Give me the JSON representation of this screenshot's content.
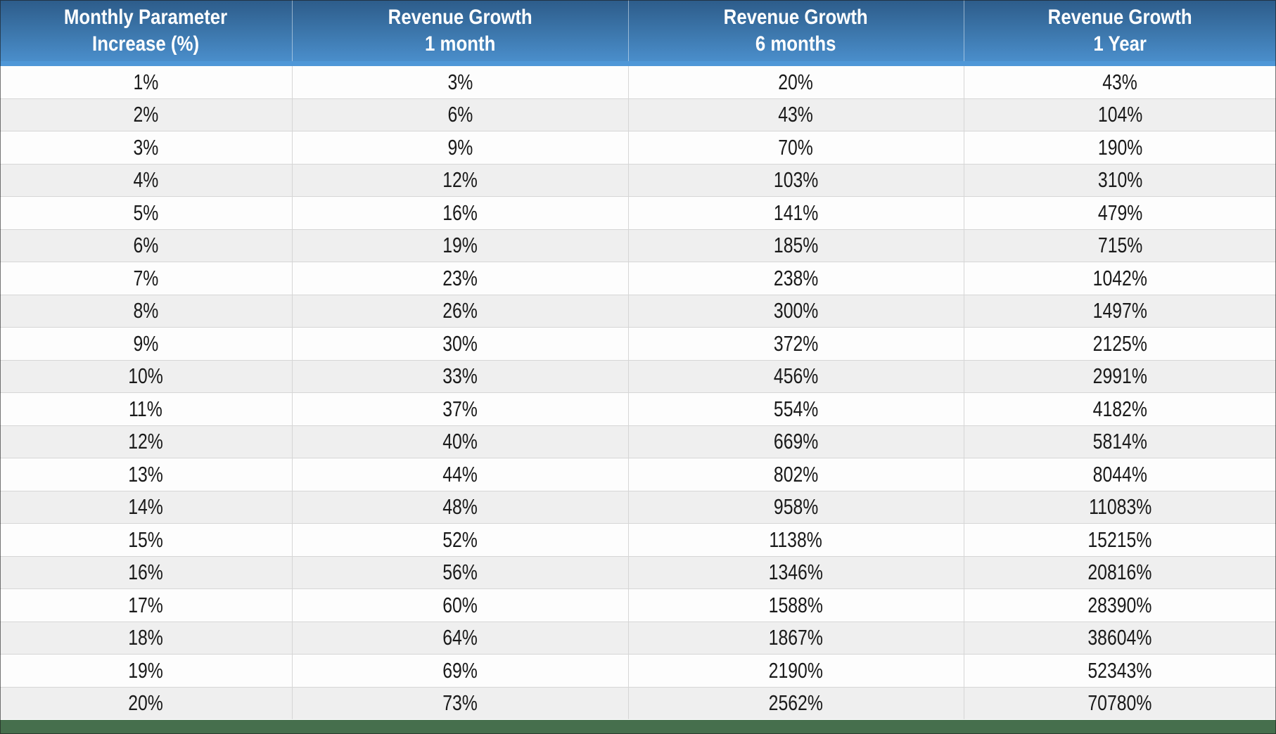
{
  "chart_data": {
    "type": "table",
    "columns": [
      "Monthly Parameter\nIncrease (%)",
      "Revenue Growth\n1 month",
      "Revenue Growth\n6 months",
      "Revenue Growth\n1 Year"
    ],
    "rows": [
      [
        "1%",
        "3%",
        "20%",
        "43%"
      ],
      [
        "2%",
        "6%",
        "43%",
        "104%"
      ],
      [
        "3%",
        "9%",
        "70%",
        "190%"
      ],
      [
        "4%",
        "12%",
        "103%",
        "310%"
      ],
      [
        "5%",
        "16%",
        "141%",
        "479%"
      ],
      [
        "6%",
        "19%",
        "185%",
        "715%"
      ],
      [
        "7%",
        "23%",
        "238%",
        "1042%"
      ],
      [
        "8%",
        "26%",
        "300%",
        "1497%"
      ],
      [
        "9%",
        "30%",
        "372%",
        "2125%"
      ],
      [
        "10%",
        "33%",
        "456%",
        "2991%"
      ],
      [
        "11%",
        "37%",
        "554%",
        "4182%"
      ],
      [
        "12%",
        "40%",
        "669%",
        "5814%"
      ],
      [
        "13%",
        "44%",
        "802%",
        "8044%"
      ],
      [
        "14%",
        "48%",
        "958%",
        "11083%"
      ],
      [
        "15%",
        "52%",
        "1138%",
        "15215%"
      ],
      [
        "16%",
        "56%",
        "1346%",
        "20816%"
      ],
      [
        "17%",
        "60%",
        "1588%",
        "28390%"
      ],
      [
        "18%",
        "64%",
        "1867%",
        "38604%"
      ],
      [
        "19%",
        "69%",
        "2190%",
        "52343%"
      ],
      [
        "20%",
        "73%",
        "2562%",
        "70780%"
      ]
    ]
  },
  "colors": {
    "header_gradient_top": "#2d5c8a",
    "header_gradient_mid": "#3c76ab",
    "header_gradient_bottom": "#4a8ecb",
    "header_accent_strip": "#4f97d7",
    "header_text": "#ffffff",
    "row_even": "#fdfdfd",
    "row_odd": "#efefef",
    "grid_line": "#d6d6d6",
    "cell_text": "#1a1a1a",
    "bottom_bar": "#466f4d"
  }
}
